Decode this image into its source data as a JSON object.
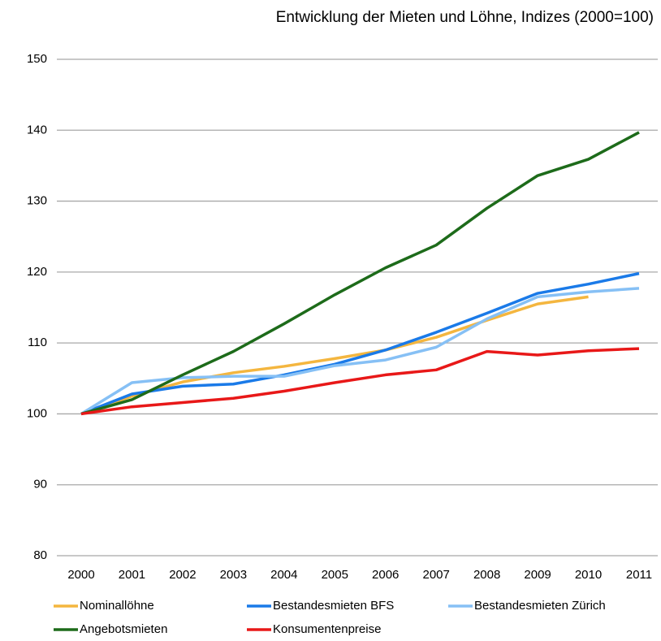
{
  "chart_data": {
    "type": "line",
    "title": "Entwicklung der Mieten und Löhne, Indizes (2000=100)",
    "categories": [
      "2000",
      "2001",
      "2002",
      "2003",
      "2004",
      "2005",
      "2006",
      "2007",
      "2008",
      "2009",
      "2010",
      "2011"
    ],
    "series": [
      {
        "name": "Nominallöhne",
        "color": "#f4b63f",
        "values": [
          100,
          102.5,
          104.5,
          105.8,
          106.7,
          107.8,
          109,
          110.8,
          113.2,
          115.5,
          116.5,
          null
        ]
      },
      {
        "name": "Bestandesmieten BFS",
        "color": "#1a7ae8",
        "values": [
          100,
          102.8,
          103.9,
          104.2,
          105.5,
          107,
          109,
          111.5,
          114.2,
          117,
          118.3,
          119.8
        ]
      },
      {
        "name": "Bestandesmieten Zürich",
        "color": "#86c0f5",
        "values": [
          100,
          104.4,
          105.1,
          105.3,
          105.3,
          106.8,
          107.6,
          109.4,
          113.4,
          116.5,
          117.2,
          117.7
        ]
      },
      {
        "name": "Angebotsmieten",
        "color": "#1d6b1a",
        "values": [
          100,
          102,
          105.5,
          108.8,
          112.7,
          116.8,
          120.6,
          123.8,
          129,
          133.6,
          135.9,
          139.7
        ]
      },
      {
        "name": "Konsumentenpreise",
        "color": "#e81818",
        "values": [
          100,
          101,
          101.6,
          102.2,
          103.2,
          104.4,
          105.5,
          106.2,
          108.8,
          108.3,
          108.9,
          109.2
        ]
      }
    ],
    "ylim": [
      80,
      150
    ],
    "yticks": [
      80,
      90,
      100,
      110,
      120,
      130,
      140,
      150
    ],
    "grid": true,
    "legend": "bottom"
  }
}
